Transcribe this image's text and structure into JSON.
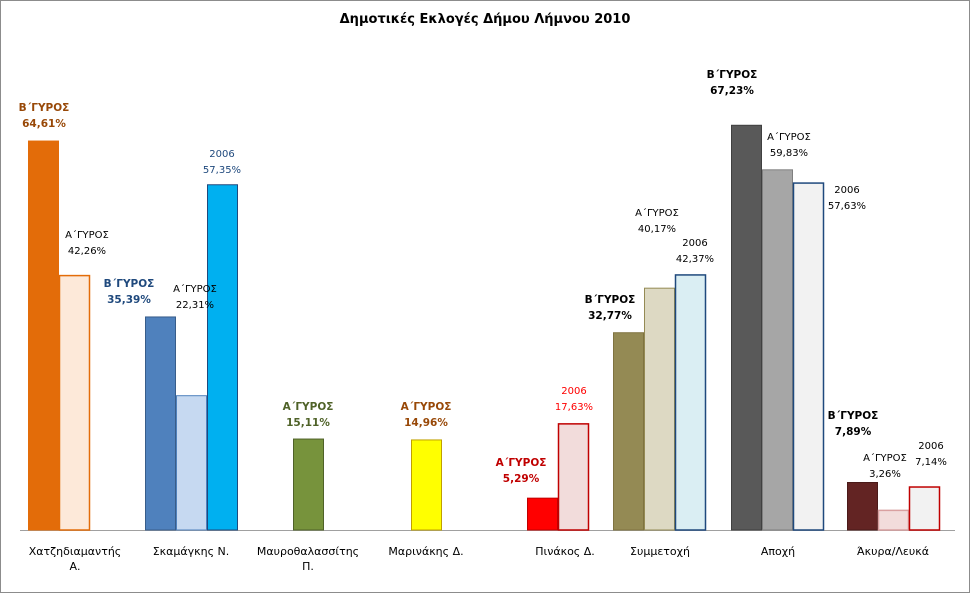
{
  "chart_data": {
    "type": "bar",
    "title": "Δημοτικές Εκλογές Δήμου Λήμνου 2010",
    "xlabel": "",
    "ylabel": "",
    "ylim": [
      0,
      70
    ],
    "grid": false,
    "legend": "none",
    "categories": [
      {
        "name": "Χατζηδιαμαντής Α.",
        "bars": [
          {
            "label": "Β΄ΓΥΡΟΣ",
            "value": 64.61,
            "value_text": "64,61%",
            "fill": "#e36c09",
            "stroke": "#e36c09",
            "text_color": "#984807",
            "bold": true
          },
          {
            "label": "Α΄ΓΥΡΟΣ",
            "value": 42.26,
            "value_text": "42,26%",
            "fill": "#fde9d9",
            "stroke": "#e36c09",
            "text_color": "#000000",
            "bold": false
          }
        ]
      },
      {
        "name": "Σκαμάγκης Ν.",
        "bars": [
          {
            "label": "Β΄ΓΥΡΟΣ",
            "value": 35.39,
            "value_text": "35,39%",
            "fill": "#4f81bd",
            "stroke": "#385d8a",
            "text_color": "#1f497d",
            "bold": true
          },
          {
            "label": "Α΄ΓΥΡΟΣ",
            "value": 22.31,
            "value_text": "22,31%",
            "fill": "#c6d9f1",
            "stroke": "#4f81bd",
            "text_color": "#000000",
            "bold": false
          },
          {
            "label": "2006",
            "value": 57.35,
            "value_text": "57,35%",
            "fill": "#00b0f0",
            "stroke": "#1f497d",
            "text_color": "#1f497d",
            "bold": false
          }
        ]
      },
      {
        "name": "Μαυροθαλασσίτης Π.",
        "bars": [
          {
            "label": "Α΄ΓΥΡΟΣ",
            "value": 15.11,
            "value_text": "15,11%",
            "fill": "#77933c",
            "stroke": "#4f6228",
            "text_color": "#4f6228",
            "bold": true
          }
        ]
      },
      {
        "name": "Μαρινάκης Δ.",
        "bars": [
          {
            "label": "Α΄ΓΥΡΟΣ",
            "value": 14.96,
            "value_text": "14,96%",
            "fill": "#ffff00",
            "stroke": "#c0a000",
            "text_color": "#984807",
            "bold": true
          }
        ]
      },
      {
        "name": "Πινάκος Δ.",
        "bars": [
          {
            "label": "Α΄ΓΥΡΟΣ",
            "value": 5.29,
            "value_text": "5,29%",
            "fill": "#ff0000",
            "stroke": "#c00000",
            "text_color": "#c00000",
            "bold": true
          },
          {
            "label": "2006",
            "value": 17.63,
            "value_text": "17,63%",
            "fill": "#f2dcdb",
            "stroke": "#c00000",
            "text_color": "#ff0000",
            "bold": false
          }
        ]
      },
      {
        "name": "Συμμετοχή",
        "bars": [
          {
            "label": "Β΄ΓΥΡΟΣ",
            "value": 32.77,
            "value_text": "32,77%",
            "fill": "#948a54",
            "stroke": "#7f7340",
            "text_color": "#000000",
            "bold": true
          },
          {
            "label": "Α΄ΓΥΡΟΣ",
            "value": 40.17,
            "value_text": "40,17%",
            "fill": "#ddd9c3",
            "stroke": "#948a54",
            "text_color": "#000000",
            "bold": false
          },
          {
            "label": "2006",
            "value": 42.37,
            "value_text": "42,37%",
            "fill": "#daeef3",
            "stroke": "#1f497d",
            "text_color": "#000000",
            "bold": false
          }
        ]
      },
      {
        "name": "Αποχή",
        "bars": [
          {
            "label": "Β΄ΓΥΡΟΣ",
            "value": 67.23,
            "value_text": "67,23%",
            "fill": "#595959",
            "stroke": "#404040",
            "text_color": "#000000",
            "bold": true
          },
          {
            "label": "Α΄ΓΥΡΟΣ",
            "value": 59.83,
            "value_text": "59,83%",
            "fill": "#a6a6a6",
            "stroke": "#7f7f7f",
            "text_color": "#000000",
            "bold": false
          },
          {
            "label": "2006",
            "value": 57.63,
            "value_text": "57,63%",
            "fill": "#f2f2f2",
            "stroke": "#1f497d",
            "text_color": "#000000",
            "bold": false
          }
        ]
      },
      {
        "name": "Άκυρα/Λευκά",
        "bars": [
          {
            "label": "Β΄ΓΥΡΟΣ",
            "value": 7.89,
            "value_text": "7,89%",
            "fill": "#632423",
            "stroke": "#4a1a19",
            "text_color": "#000000",
            "bold": true
          },
          {
            "label": "Α΄ΓΥΡΟΣ",
            "value": 3.26,
            "value_text": "3,26%",
            "fill": "#f2dcdb",
            "stroke": "#d9a0a0",
            "text_color": "#000000",
            "bold": false
          },
          {
            "label": "2006",
            "value": 7.14,
            "value_text": "7,14%",
            "fill": "#f2f2f2",
            "stroke": "#c00000",
            "text_color": "#000000",
            "bold": false
          }
        ]
      }
    ]
  }
}
